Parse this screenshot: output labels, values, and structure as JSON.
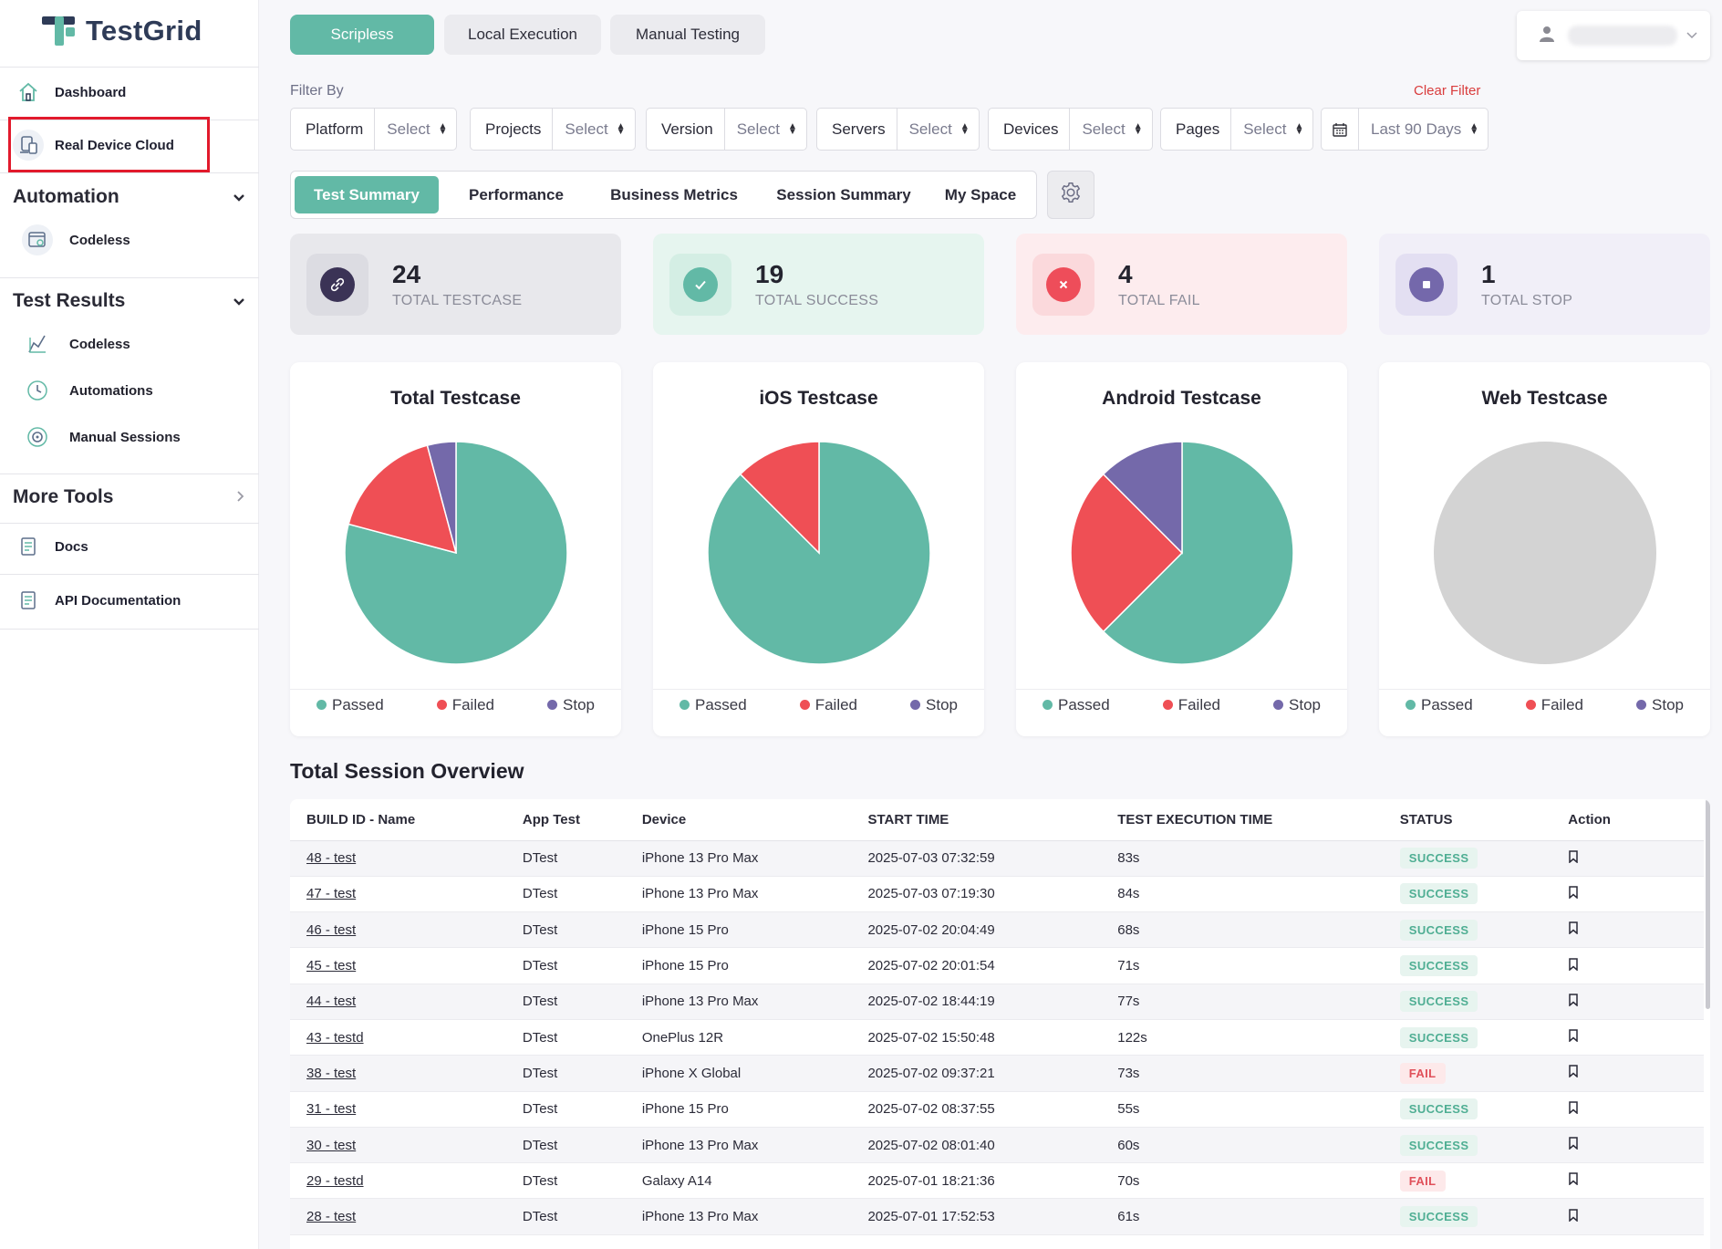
{
  "brand": {
    "name": "TestGrid"
  },
  "sidebar": {
    "top_items": [
      {
        "label": "Dashboard",
        "icon": "home-icon"
      },
      {
        "label": "Real Device Cloud",
        "icon": "devices-icon"
      }
    ],
    "sections": [
      {
        "title": "Automation",
        "items": [
          {
            "label": "Codeless",
            "icon": "codeless-icon"
          }
        ]
      },
      {
        "title": "Test Results",
        "items": [
          {
            "label": "Codeless",
            "icon": "codeless-results-icon"
          },
          {
            "label": "Automations",
            "icon": "clock-icon"
          },
          {
            "label": "Manual Sessions",
            "icon": "manual-sessions-icon"
          }
        ]
      },
      {
        "title": "More Tools",
        "items": []
      }
    ],
    "bottom_items": [
      {
        "label": "Docs",
        "icon": "docs-icon"
      },
      {
        "label": "API Documentation",
        "icon": "api-docs-icon"
      }
    ]
  },
  "top_tabs": [
    {
      "label": "Scripless",
      "active": true
    },
    {
      "label": "Local Execution",
      "active": false
    },
    {
      "label": "Manual Testing",
      "active": false
    }
  ],
  "filters": {
    "label": "Filter By",
    "clear": "Clear Filter",
    "items": [
      {
        "label": "Platform",
        "value": "Select"
      },
      {
        "label": "Projects",
        "value": "Select"
      },
      {
        "label": "Version",
        "value": "Select"
      },
      {
        "label": "Servers",
        "value": "Select"
      },
      {
        "label": "Devices",
        "value": "Select"
      },
      {
        "label": "Pages",
        "value": "Select"
      }
    ],
    "date_range": "Last 90 Days"
  },
  "dashboard_tabs": [
    {
      "label": "Test Summary",
      "active": true
    },
    {
      "label": "Performance",
      "active": false
    },
    {
      "label": "Business Metrics",
      "active": false
    },
    {
      "label": "Session Summary",
      "active": false
    },
    {
      "label": "My Space",
      "active": false
    }
  ],
  "stats": [
    {
      "value": "24",
      "label": "TOTAL TESTCASE",
      "color": "#3b3356"
    },
    {
      "value": "19",
      "label": "TOTAL SUCCESS",
      "color": "#62b9a6"
    },
    {
      "value": "4",
      "label": "TOTAL FAIL",
      "color": "#ee4d5a"
    },
    {
      "value": "1",
      "label": "TOTAL STOP",
      "color": "#7468ab"
    }
  ],
  "legend": [
    "Passed",
    "Failed",
    "Stop"
  ],
  "colors": {
    "passed": "#62b9a6",
    "failed": "#ef4f55",
    "stop": "#7469aa",
    "empty": "#d3d3d3",
    "accent": "#62b9a6"
  },
  "chart_data": [
    {
      "type": "pie",
      "title": "Total Testcase",
      "categories": [
        "Passed",
        "Failed",
        "Stop"
      ],
      "values": [
        19,
        4,
        1
      ]
    },
    {
      "type": "pie",
      "title": "iOS Testcase",
      "categories": [
        "Passed",
        "Failed",
        "Stop"
      ],
      "values": [
        7,
        1,
        0
      ]
    },
    {
      "type": "pie",
      "title": "Android Testcase",
      "categories": [
        "Passed",
        "Failed",
        "Stop"
      ],
      "values": [
        5,
        2,
        1
      ]
    },
    {
      "type": "pie",
      "title": "Web Testcase",
      "categories": [
        "Passed",
        "Failed",
        "Stop"
      ],
      "values": [
        0,
        0,
        0
      ]
    }
  ],
  "sessions": {
    "title": "Total Session Overview",
    "columns": [
      "BUILD ID - Name",
      "App Test",
      "Device",
      "START TIME",
      "TEST EXECUTION TIME",
      "STATUS",
      "Action"
    ],
    "rows": [
      {
        "build": "48 - test",
        "app": "DTest",
        "device": "iPhone 13 Pro Max",
        "start": "2025-07-03 07:32:59",
        "exec": "83s",
        "status": "SUCCESS"
      },
      {
        "build": "47 - test",
        "app": "DTest",
        "device": "iPhone 13 Pro Max",
        "start": "2025-07-03 07:19:30",
        "exec": "84s",
        "status": "SUCCESS"
      },
      {
        "build": "46 - test",
        "app": "DTest",
        "device": "iPhone 15 Pro",
        "start": "2025-07-02 20:04:49",
        "exec": "68s",
        "status": "SUCCESS"
      },
      {
        "build": "45 - test",
        "app": "DTest",
        "device": "iPhone 15 Pro",
        "start": "2025-07-02 20:01:54",
        "exec": "71s",
        "status": "SUCCESS"
      },
      {
        "build": "44 - test",
        "app": "DTest",
        "device": "iPhone 13 Pro Max",
        "start": "2025-07-02 18:44:19",
        "exec": "77s",
        "status": "SUCCESS"
      },
      {
        "build": "43 - testd",
        "app": "DTest",
        "device": "OnePlus 12R",
        "start": "2025-07-02 15:50:48",
        "exec": "122s",
        "status": "SUCCESS"
      },
      {
        "build": "38 - test",
        "app": "DTest",
        "device": "iPhone X Global",
        "start": "2025-07-02 09:37:21",
        "exec": "73s",
        "status": "FAIL"
      },
      {
        "build": "31 - test",
        "app": "DTest",
        "device": "iPhone 15 Pro",
        "start": "2025-07-02 08:37:55",
        "exec": "55s",
        "status": "SUCCESS"
      },
      {
        "build": "30 - test",
        "app": "DTest",
        "device": "iPhone 13 Pro Max",
        "start": "2025-07-02 08:01:40",
        "exec": "60s",
        "status": "SUCCESS"
      },
      {
        "build": "29 - testd",
        "app": "DTest",
        "device": "Galaxy A14",
        "start": "2025-07-01 18:21:36",
        "exec": "70s",
        "status": "FAIL"
      },
      {
        "build": "28 - test",
        "app": "DTest",
        "device": "iPhone 13 Pro Max",
        "start": "2025-07-01 17:52:53",
        "exec": "61s",
        "status": "SUCCESS"
      }
    ]
  }
}
